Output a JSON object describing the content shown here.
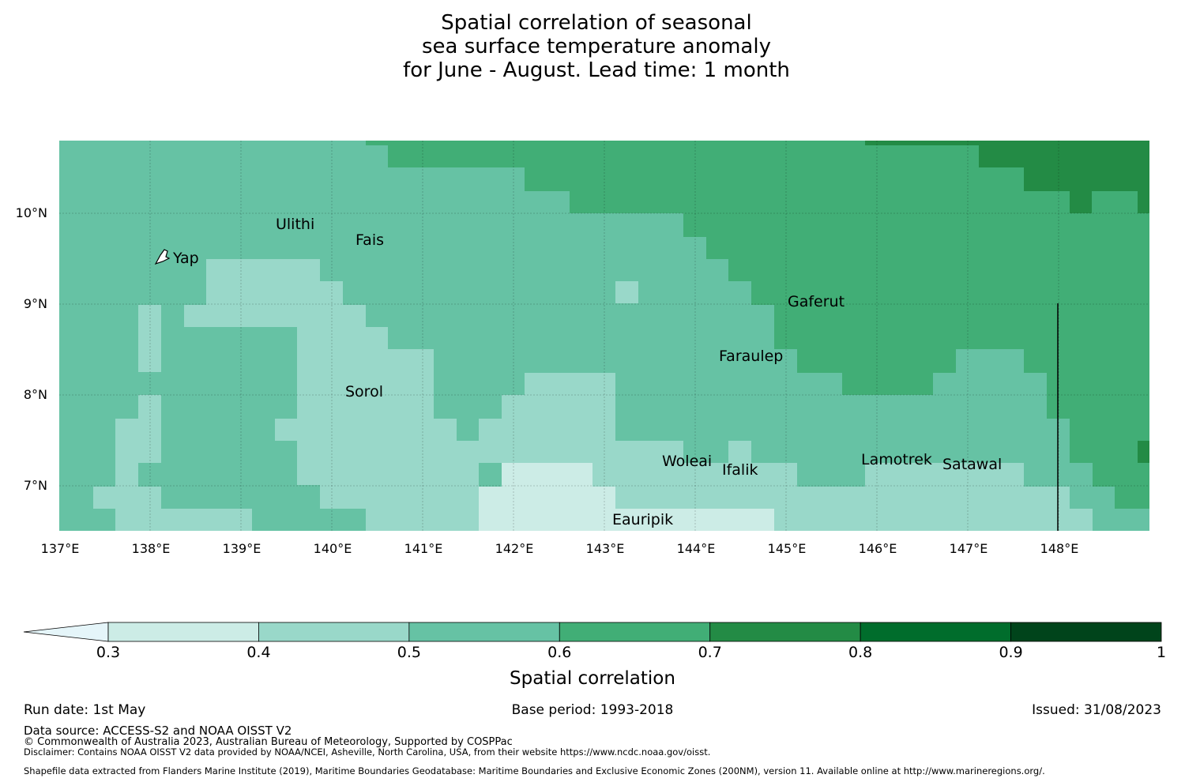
{
  "title": {
    "line1": "Spatial correlation of seasonal",
    "line2": "sea surface temperature anomaly",
    "line3": "for June - August. Lead time: 1 month"
  },
  "map": {
    "lat_labels": [
      "10°N",
      "9°N",
      "8°N",
      "7°N"
    ],
    "lon_labels": [
      "137°E",
      "138°E",
      "139°E",
      "140°E",
      "141°E",
      "142°E",
      "143°E",
      "144°E",
      "145°E",
      "146°E",
      "147°E",
      "148°E"
    ],
    "places": [
      "Yap",
      "Ulithi",
      "Fais",
      "Gaferut",
      "Faraulep",
      "Sorol",
      "Woleai",
      "Ifalik",
      "Lamotrek",
      "Satawal",
      "Eauripik"
    ]
  },
  "colorbar": {
    "ticks": [
      "0.3",
      "0.4",
      "0.5",
      "0.6",
      "0.7",
      "0.8",
      "0.9",
      "1"
    ],
    "label": "Spatial correlation",
    "colors": [
      "#e5f5f9",
      "#ccece6",
      "#99d8c9",
      "#66c2a4",
      "#41ae76",
      "#238b45",
      "#006d2c",
      "#00441b"
    ]
  },
  "footer": {
    "run_date": "Run date: 1st May",
    "base_period": "Base period: 1993-2018",
    "issued": "Issued: 31/08/2023",
    "data_source": "Data source: ACCESS-S2 and NOAA OISST V2",
    "copyright": "© Commonwealth of Australia 2023, Australian Bureau of Meteorology, Supported by COSPPac",
    "disclaimer": "Disclaimer: Contains NOAA OISST V2 data provided by NOAA/NCEI, Asheville, North Carolina, USA, from their website https://www.ncdc.noaa.gov/oisst.",
    "shapefile": "Shapefile data extracted from Flanders Marine Institute (2019), Maritime Boundaries Geodatabase: Maritime Boundaries and Exclusive Economic Zones (200NM), version 11. Available online at http://www.marineregions.org/."
  }
}
